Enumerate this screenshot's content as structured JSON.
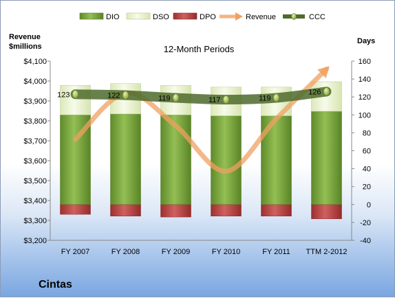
{
  "chart_data": {
    "type": "bar",
    "title": "12-Month Periods",
    "categories": [
      "FY 2007",
      "FY 2008",
      "FY 2009",
      "FY 2010",
      "FY 2011",
      "TTM 2-2012"
    ],
    "series": [
      {
        "name": "DIO",
        "axis": "right",
        "values": [
          100,
          101,
          100,
          99,
          99,
          104
        ]
      },
      {
        "name": "DSO",
        "axis": "right",
        "values": [
          33,
          34,
          33,
          32,
          32,
          33
        ]
      },
      {
        "name": "DPO",
        "axis": "right",
        "values": [
          -11,
          -13,
          -14,
          -13,
          -13,
          -16
        ]
      },
      {
        "name": "Revenue",
        "axis": "left",
        "values": [
          3706,
          3940,
          3775,
          3547,
          3810,
          4060
        ]
      },
      {
        "name": "CCC",
        "axis": "right",
        "values": [
          123,
          122,
          119,
          117,
          119,
          126
        ]
      }
    ],
    "ylabel_left": "Revenue\n$millions",
    "ylabel_right": "Days",
    "ylim_left": [
      3200,
      4100
    ],
    "ylim_right": [
      -40,
      160
    ],
    "yticks_left": [
      "$3,200",
      "$3,300",
      "$3,400",
      "$3,500",
      "$3,600",
      "$3,700",
      "$3,800",
      "$3,900",
      "$4,000",
      "$4,100"
    ],
    "yticks_right": [
      "-40",
      "-20",
      "0",
      "20",
      "40",
      "60",
      "80",
      "100",
      "120",
      "140",
      "160"
    ],
    "legend_position": "top",
    "colors": {
      "DIO": "#6f9a35",
      "DSO": "#e6f0c8",
      "DPO": "#b33f3f",
      "Revenue": "#f0a060",
      "CCC": "#4e6a2c"
    }
  },
  "company": "Cintas"
}
